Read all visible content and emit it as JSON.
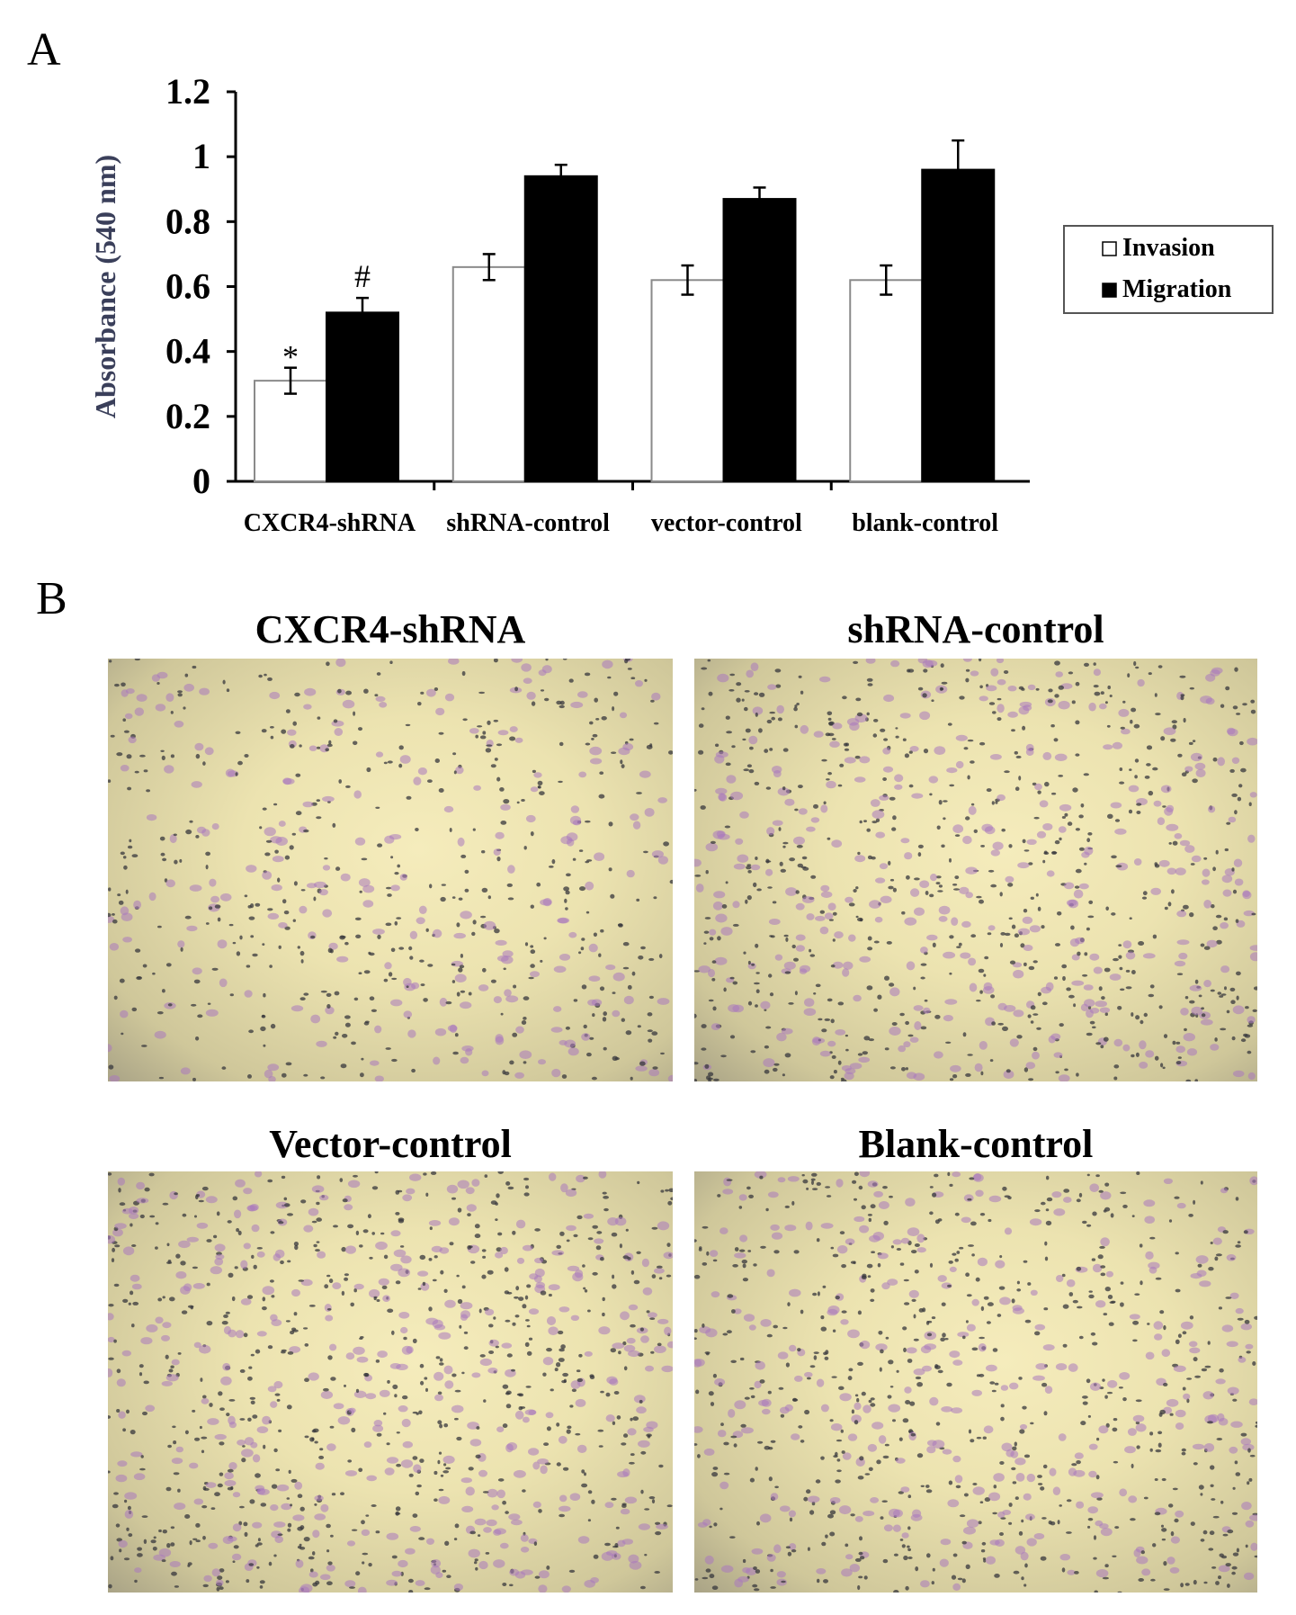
{
  "panel_a_label": "A",
  "panel_b_label": "B",
  "chart_data": {
    "type": "bar",
    "ylabel": "Absorbance (540 nm)",
    "ylim": [
      0,
      1.2
    ],
    "yticks": [
      "0",
      "0.2",
      "0.4",
      "0.6",
      "0.8",
      "1",
      "1.2"
    ],
    "categories": [
      "CXCR4-shRNA",
      "shRNA-control",
      "vector-control",
      "blank-control"
    ],
    "series": [
      {
        "name": "Invasion",
        "color": "#ffffff",
        "values": [
          0.31,
          0.66,
          0.62,
          0.62
        ],
        "errors": [
          0.04,
          0.04,
          0.045,
          0.045
        ]
      },
      {
        "name": "Migration",
        "color": "#000000",
        "values": [
          0.52,
          0.94,
          0.87,
          0.96
        ],
        "errors": [
          0.045,
          0.035,
          0.035,
          0.09
        ]
      }
    ],
    "annotations": [
      {
        "text": "*",
        "category": 0,
        "series": 0
      },
      {
        "text": "#",
        "category": 0,
        "series": 1
      }
    ],
    "legend": {
      "placement": "right",
      "entries": [
        "Invasion",
        "Migration"
      ]
    },
    "grid": false
  },
  "micrographs": [
    {
      "title": "CXCR4-shRNA"
    },
    {
      "title": "shRNA-control"
    },
    {
      "title": "Vector-control"
    },
    {
      "title": "Blank-control"
    }
  ]
}
